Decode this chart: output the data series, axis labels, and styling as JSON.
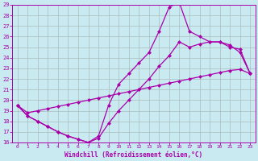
{
  "bg_color": "#c8eaf0",
  "line_color": "#aa00aa",
  "grid_color": "#aabbbb",
  "xlabel": "Windchill (Refroidissement éolien,°C)",
  "xlim": [
    -0.5,
    23.5
  ],
  "ylim": [
    16,
    29
  ],
  "xticks": [
    0,
    1,
    2,
    3,
    4,
    5,
    6,
    7,
    8,
    9,
    10,
    11,
    12,
    13,
    14,
    15,
    16,
    17,
    18,
    19,
    20,
    21,
    22,
    23
  ],
  "yticks": [
    16,
    17,
    18,
    19,
    20,
    21,
    22,
    23,
    24,
    25,
    26,
    27,
    28,
    29
  ],
  "line1_x": [
    0,
    1,
    2,
    3,
    4,
    5,
    6,
    7,
    8,
    9,
    10,
    11,
    12,
    13,
    14,
    15,
    16,
    17,
    18,
    19,
    20,
    21,
    22,
    23
  ],
  "line1_y": [
    19.5,
    18.5,
    18.0,
    17.5,
    17.0,
    16.6,
    16.3,
    16.0,
    16.6,
    19.5,
    21.5,
    22.5,
    23.5,
    24.5,
    26.5,
    28.8,
    29.2,
    26.5,
    26.0,
    25.5,
    25.5,
    25.0,
    24.8,
    22.5
  ],
  "line2_x": [
    0,
    1,
    2,
    3,
    4,
    5,
    6,
    7,
    8,
    9,
    10,
    11,
    12,
    13,
    14,
    15,
    16,
    17,
    18,
    19,
    20,
    21,
    22,
    23
  ],
  "line2_y": [
    19.5,
    18.5,
    18.0,
    17.5,
    17.0,
    16.6,
    16.3,
    16.0,
    16.4,
    17.8,
    19.0,
    20.0,
    21.0,
    22.0,
    23.2,
    24.2,
    25.5,
    25.0,
    25.3,
    25.5,
    25.5,
    25.2,
    24.5,
    22.5
  ],
  "line3_x": [
    0,
    1,
    2,
    3,
    4,
    5,
    6,
    7,
    8,
    9,
    10,
    11,
    12,
    13,
    14,
    15,
    16,
    17,
    18,
    19,
    20,
    21,
    22,
    23
  ],
  "line3_y": [
    19.5,
    18.8,
    19.0,
    19.2,
    19.4,
    19.6,
    19.8,
    20.0,
    20.2,
    20.4,
    20.6,
    20.8,
    21.0,
    21.2,
    21.4,
    21.6,
    21.8,
    22.0,
    22.2,
    22.4,
    22.6,
    22.8,
    22.9,
    22.5
  ],
  "marker": "D",
  "marker_size": 2.5,
  "linewidth": 0.9
}
